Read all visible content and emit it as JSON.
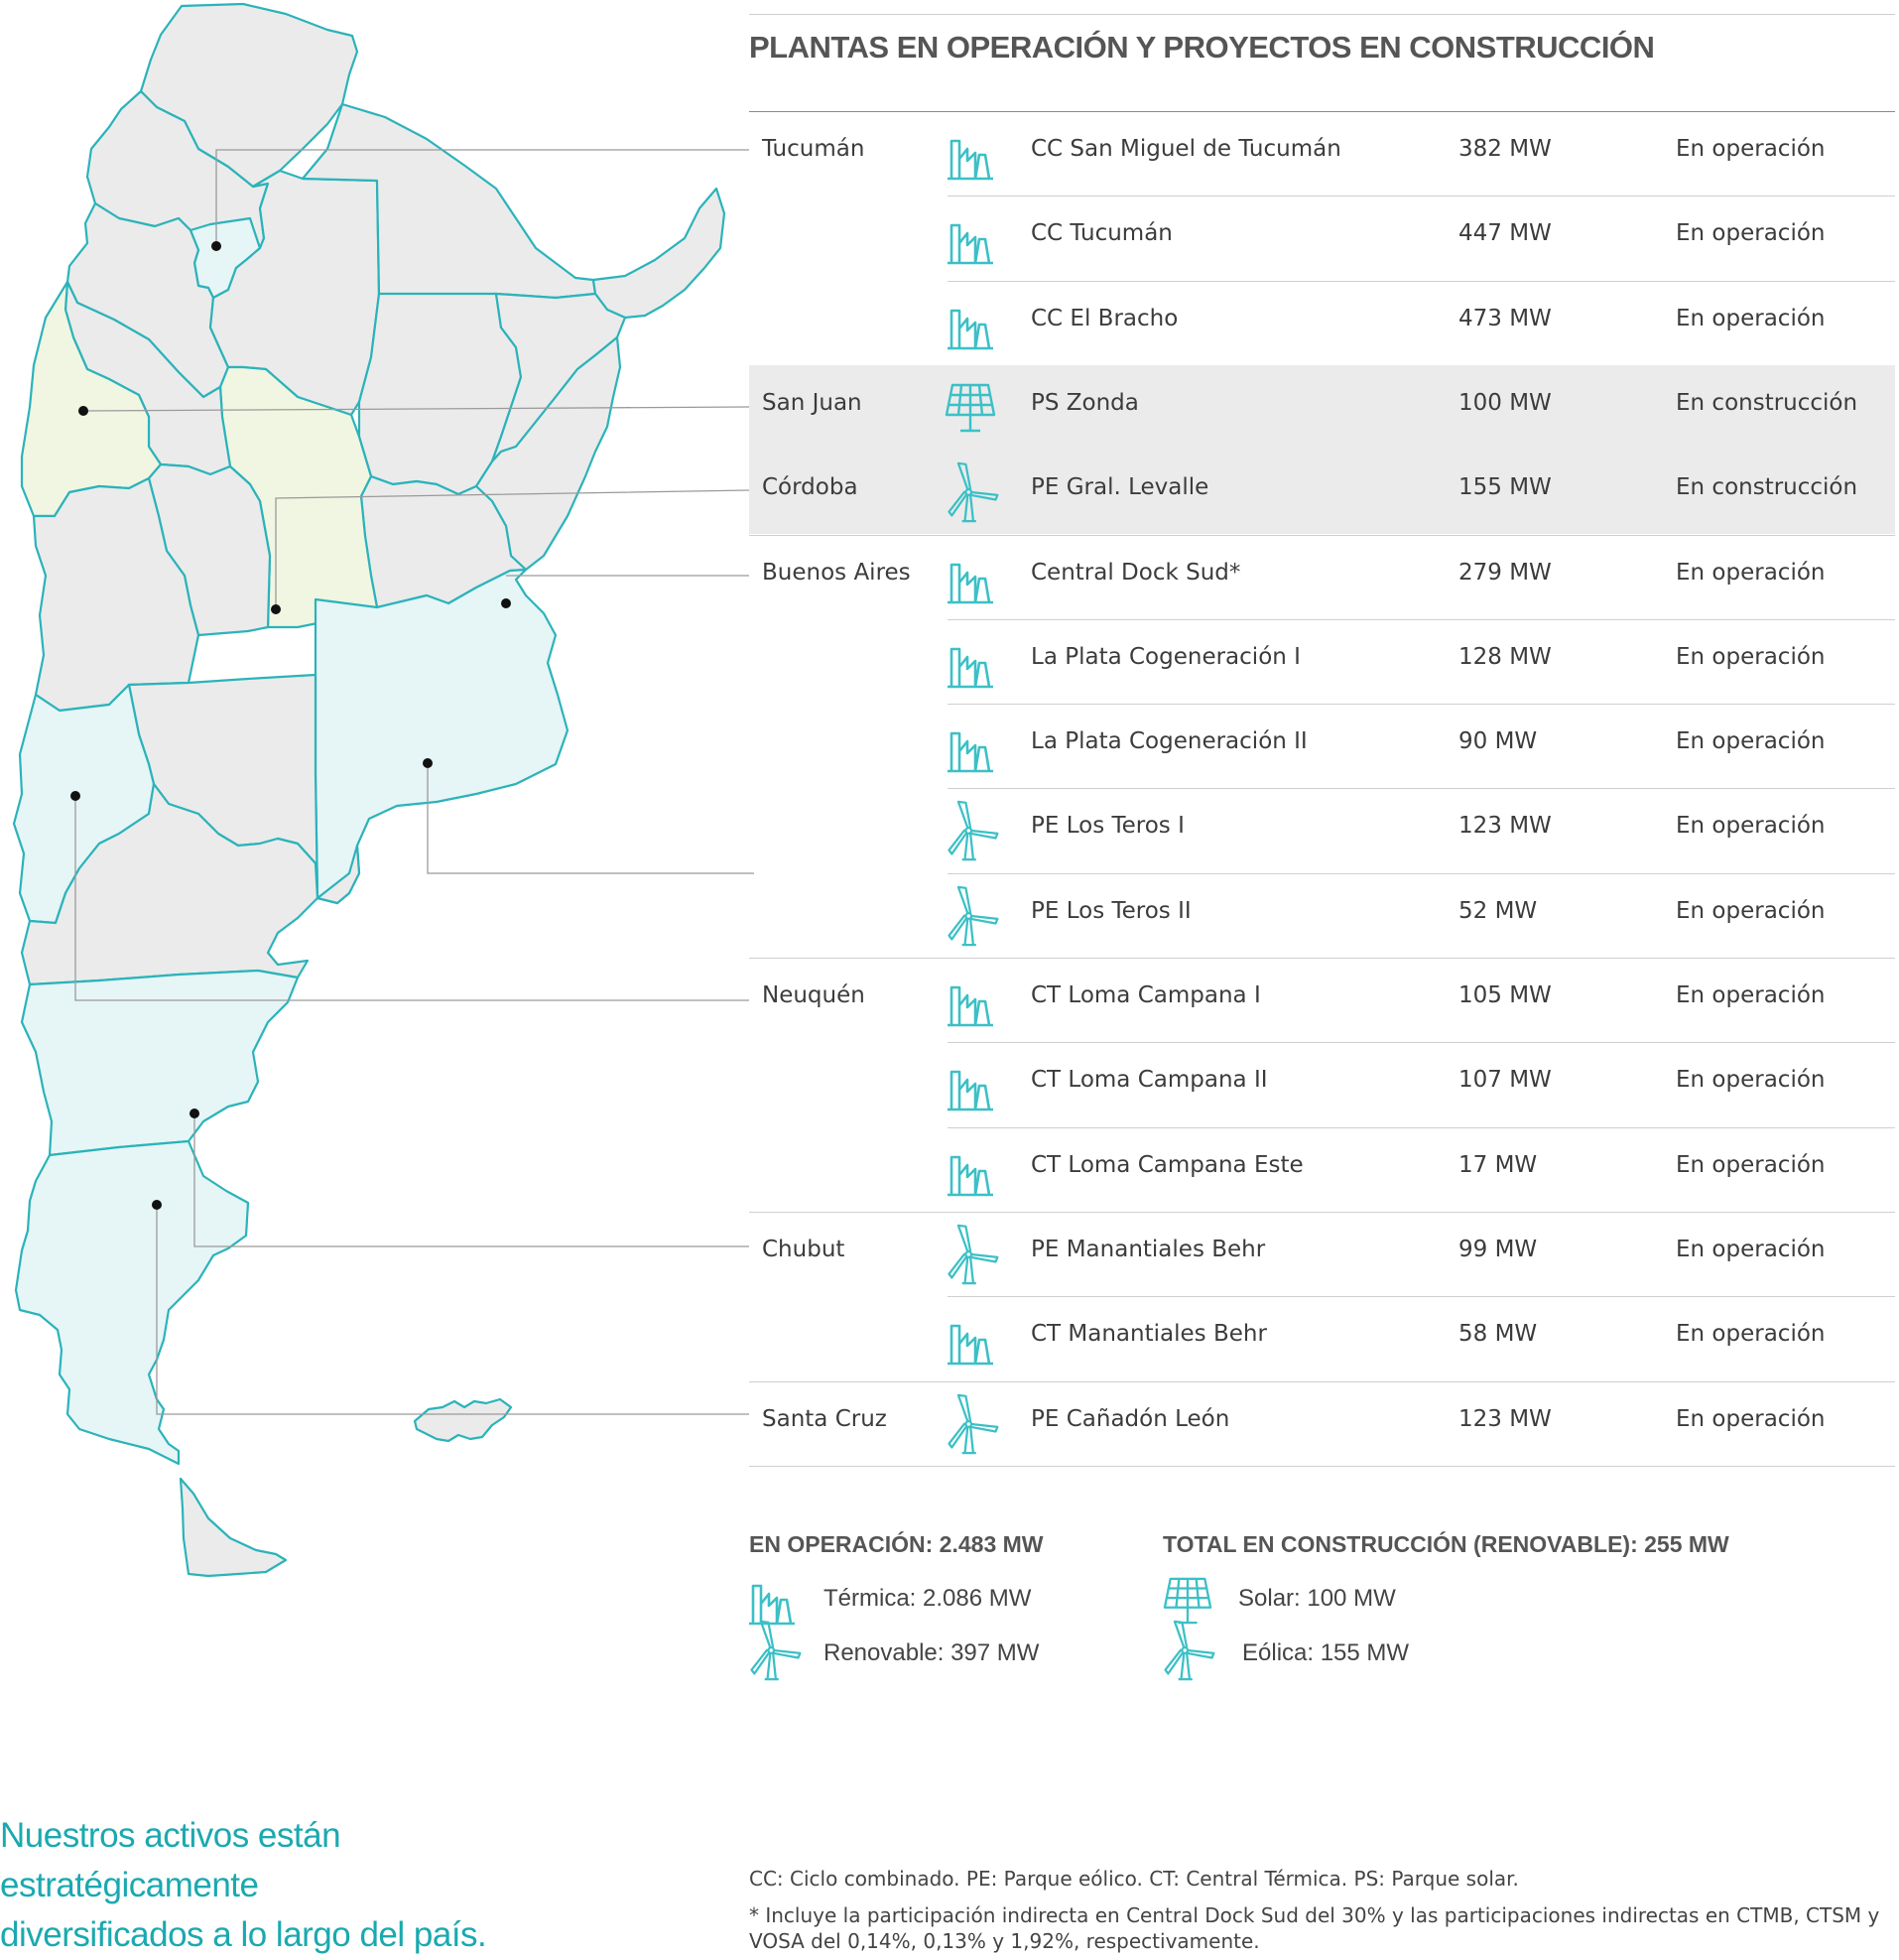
{
  "title": "PLANTAS EN OPERACIÓN Y PROYECTOS EN CONSTRUCCIÓN",
  "plants": [
    {
      "province": "Tucumán",
      "type": "thermal",
      "name": "CC San Miguel de Tucumán",
      "capacity": "382 MW",
      "status": "En operación"
    },
    {
      "province": "",
      "type": "thermal",
      "name": "CC Tucumán",
      "capacity": "447 MW",
      "status": "En operación"
    },
    {
      "province": "",
      "type": "thermal",
      "name": "CC El Bracho",
      "capacity": "473 MW",
      "status": "En operación"
    },
    {
      "province": "San Juan",
      "type": "solar",
      "name": "PS Zonda",
      "capacity": "100 MW",
      "status": "En construcción"
    },
    {
      "province": "Córdoba",
      "type": "wind",
      "name": "PE Gral. Levalle",
      "capacity": "155 MW",
      "status": "En construcción"
    },
    {
      "province": "Buenos Aires",
      "type": "thermal",
      "name": "Central Dock Sud*",
      "capacity": "279 MW",
      "status": "En operación"
    },
    {
      "province": "",
      "type": "thermal",
      "name": "La Plata Cogeneración I",
      "capacity": "128 MW",
      "status": "En operación"
    },
    {
      "province": "",
      "type": "thermal",
      "name": "La Plata Cogeneración II",
      "capacity": "90 MW",
      "status": "En operación"
    },
    {
      "province": "",
      "type": "wind",
      "name": "PE Los Teros I",
      "capacity": "123 MW",
      "status": "En operación"
    },
    {
      "province": "",
      "type": "wind",
      "name": "PE Los Teros II",
      "capacity": "52 MW",
      "status": "En operación"
    },
    {
      "province": "Neuquén",
      "type": "thermal",
      "name": "CT Loma Campana I",
      "capacity": "105 MW",
      "status": "En operación"
    },
    {
      "province": "",
      "type": "thermal",
      "name": "CT Loma Campana II",
      "capacity": "107 MW",
      "status": "En operación"
    },
    {
      "province": "",
      "type": "thermal",
      "name": "CT Loma Campana Este",
      "capacity": "17 MW",
      "status": "En operación"
    },
    {
      "province": "Chubut",
      "type": "wind",
      "name": "PE Manantiales Behr",
      "capacity": "99 MW",
      "status": "En operación"
    },
    {
      "province": "",
      "type": "thermal",
      "name": "CT Manantiales Behr",
      "capacity": "58 MW",
      "status": "En operación"
    },
    {
      "province": "Santa Cruz",
      "type": "wind",
      "name": "PE Cañadón León",
      "capacity": "123 MW",
      "status": "En operación"
    }
  ],
  "summary": {
    "operation": {
      "heading": "EN OPERACIÓN: 2.483 MW",
      "items": [
        {
          "type": "thermal",
          "label": "Térmica: 2.086 MW"
        },
        {
          "type": "wind",
          "label": "Renovable: 397 MW"
        }
      ]
    },
    "construction": {
      "heading": "TOTAL EN CONSTRUCCIÓN (RENOVABLE): 255 MW",
      "items": [
        {
          "type": "solar",
          "label": "Solar: 100 MW"
        },
        {
          "type": "wind",
          "label": "Eólica: 155 MW"
        }
      ]
    }
  },
  "slogan": [
    "Nuestros activos están",
    "estratégicamente",
    "diversificados a lo largo del país."
  ],
  "notes": [
    "CC: Ciclo combinado. PE: Parque eólico. CT: Central Térmica. PS: Parque solar.",
    "* Incluye la participación indirecta en Central Dock Sud del 30% y las participaciones indirectas en CTMB, CTSM y VOSA del 0,14%, 0,13% y 1,92%, respectivamente."
  ],
  "colors": {
    "accent": "#1aa9b0",
    "province_border": "#2bb3ba",
    "province_default": "#ebebeb",
    "province_operation": "#e6f5f6",
    "province_construction": "#f0f6e2"
  }
}
